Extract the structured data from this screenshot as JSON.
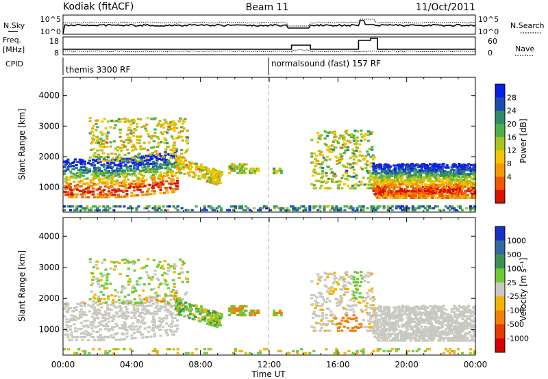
{
  "header": {
    "station": "Kodiak (fitACF)",
    "beam": "Beam 11",
    "date": "11/Oct/2011"
  },
  "noise_panel": {
    "left_label": "N.Sky",
    "left_ticks": [
      "10^5",
      "10^0"
    ],
    "right_label": "N.Search",
    "right_ticks": [
      "10^5",
      "10^0"
    ]
  },
  "freq_panel": {
    "left_label": [
      "Freq.",
      "[MHz]"
    ],
    "left_ticks": [
      "18",
      "8"
    ],
    "right_label": "Nave",
    "right_ticks": [
      "60",
      "0"
    ]
  },
  "cpid_panel": {
    "label": "CPID",
    "modes": [
      {
        "text": "themis 3300 RF",
        "start_hour": 0
      },
      {
        "text": "normalsound (fast) 157 RF",
        "start_hour": 12
      }
    ]
  },
  "time_axis": {
    "label": "Time UT",
    "ticks": [
      "00:00",
      "04:00",
      "08:00",
      "12:00",
      "16:00",
      "20:00",
      "00:00"
    ]
  },
  "chart_data": [
    {
      "type": "heatmap",
      "name": "power",
      "x_range_hours": [
        0,
        24
      ],
      "ylabel": "Slant Range [km]",
      "ylim": [
        180,
        4600
      ],
      "yticks": [
        1000,
        2000,
        3000,
        4000
      ],
      "colorbar": {
        "label": "Power [dB]",
        "labels": [
          "4",
          "8",
          "12",
          "16",
          "20",
          "24",
          "28"
        ],
        "colors": [
          "#0a1ee6",
          "#1e4ab4",
          "#2f8a6a",
          "#4fb04a",
          "#a9c41c",
          "#f5c400",
          "#f49a00",
          "#ef5a00",
          "#dd1100"
        ]
      }
    },
    {
      "type": "heatmap",
      "name": "velocity",
      "x_range_hours": [
        0,
        24
      ],
      "ylabel": "Slant Range [km]",
      "ylim": [
        180,
        4600
      ],
      "yticks": [
        1000,
        2000,
        3000,
        4000
      ],
      "colorbar": {
        "label": "Velocity [m s⁻¹]",
        "labels": [
          "1000",
          "500",
          "100",
          "25",
          "-25",
          "-100",
          "-500",
          "-1000"
        ],
        "colors": [
          "#1a2ec8",
          "#2e6aa0",
          "#3e8f52",
          "#6ccb34",
          "#c8c8c0",
          "#f0b400",
          "#f08000",
          "#e83a00",
          "#d40000"
        ]
      }
    }
  ]
}
